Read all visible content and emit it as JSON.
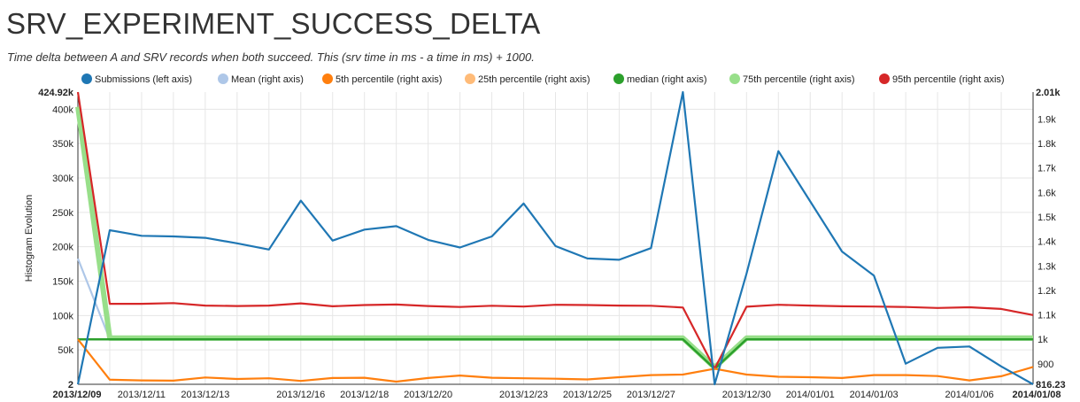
{
  "header": {
    "title": "SRV_EXPERIMENT_SUCCESS_DELTA",
    "subtitle": "Time delta between A and SRV records when both succeed. This (srv time in ms - a time in ms) + 1000."
  },
  "chart_data": {
    "type": "line",
    "title": "SRV_EXPERIMENT_SUCCESS_DELTA",
    "ylabel": "Histogram Evolution",
    "x": [
      "2013/12/09",
      "2013/12/10",
      "2013/12/11",
      "2013/12/12",
      "2013/12/13",
      "2013/12/14",
      "2013/12/15",
      "2013/12/16",
      "2013/12/17",
      "2013/12/18",
      "2013/12/19",
      "2013/12/20",
      "2013/12/21",
      "2013/12/22",
      "2013/12/23",
      "2013/12/24",
      "2013/12/25",
      "2013/12/26",
      "2013/12/27",
      "2013/12/28",
      "2013/12/29",
      "2013/12/30",
      "2013/12/31",
      "2014/01/01",
      "2014/01/02",
      "2014/01/03",
      "2014/01/04",
      "2014/01/05",
      "2014/01/06",
      "2014/01/07",
      "2014/01/08"
    ],
    "xticks": [
      "2013/12/09",
      "2013/12/11",
      "2013/12/13",
      "2013/12/16",
      "2013/12/18",
      "2013/12/20",
      "2013/12/23",
      "2013/12/25",
      "2013/12/27",
      "2013/12/30",
      "2014/01/01",
      "2014/01/03",
      "2014/01/06",
      "2014/01/08"
    ],
    "x_first_label": "2013/12/09",
    "x_last_label": "2014/01/08",
    "left_axis": {
      "min": 2,
      "max": 424920,
      "min_label": "2",
      "max_label": "424.92k",
      "ticks": [
        50000,
        100000,
        150000,
        200000,
        250000,
        300000,
        350000,
        400000
      ],
      "tick_labels": [
        "50k",
        "100k",
        "150k",
        "200k",
        "250k",
        "300k",
        "350k",
        "400k"
      ]
    },
    "right_axis": {
      "min": 816.23,
      "max": 2010,
      "min_label": "816.23",
      "max_label": "2.01k",
      "ticks": [
        900,
        1000,
        1100,
        1200,
        1300,
        1400,
        1500,
        1600,
        1700,
        1800,
        1900
      ],
      "tick_labels": [
        "900",
        "1k",
        "1.1k",
        "1.2k",
        "1.3k",
        "1.4k",
        "1.5k",
        "1.6k",
        "1.7k",
        "1.8k",
        "1.9k"
      ]
    },
    "grid": true,
    "legend_position": "top",
    "series": [
      {
        "name": "Submissions (left axis)",
        "axis": "left",
        "color": "#1f77b4",
        "values": [
          2,
          224000,
          216000,
          215000,
          213000,
          205000,
          196000,
          267000,
          209000,
          225000,
          230000,
          210000,
          199000,
          215000,
          263000,
          201000,
          183000,
          181000,
          198000,
          424920,
          2,
          161000,
          339000,
          266000,
          193000,
          158000,
          30000,
          53000,
          55000,
          26000,
          2
        ]
      },
      {
        "name": "Mean (right axis)",
        "axis": "right",
        "color": "#aec7e8",
        "values": [
          1330,
          1000,
          1000,
          1000,
          1000,
          1000,
          1000,
          1000,
          1000,
          1000,
          1000,
          1000,
          1000,
          1000,
          1000,
          1000,
          1000,
          1000,
          1000,
          1000,
          880,
          1000,
          1000,
          1000,
          1000,
          1000,
          1000,
          1000,
          1000,
          1000,
          1000
        ]
      },
      {
        "name": "5th percentile (right axis)",
        "axis": "right",
        "color": "#ff7f0e",
        "values": [
          1000,
          835,
          832,
          831,
          844,
          838,
          841,
          830,
          842,
          843,
          827,
          842,
          852,
          843,
          841,
          839,
          836,
          845,
          854,
          856,
          880,
          856,
          847,
          845,
          842,
          854,
          854,
          850,
          832,
          849,
          887
        ]
      },
      {
        "name": "25th percentile (right axis)",
        "axis": "right",
        "color": "#ffbb78",
        "values": [
          1000,
          1000,
          1000,
          1000,
          1000,
          1000,
          1000,
          1000,
          1000,
          1000,
          1000,
          1000,
          1000,
          1000,
          1000,
          1000,
          1000,
          1000,
          1000,
          1000,
          880,
          1000,
          1000,
          1000,
          1000,
          1000,
          1000,
          1000,
          1000,
          1000,
          1000
        ]
      },
      {
        "name": "median (right axis)",
        "axis": "right",
        "color": "#2ca02c",
        "values": [
          1000,
          1000,
          1000,
          1000,
          1000,
          1000,
          1000,
          1000,
          1000,
          1000,
          1000,
          1000,
          1000,
          1000,
          1000,
          1000,
          1000,
          1000,
          1000,
          1000,
          880,
          1000,
          1000,
          1000,
          1000,
          1000,
          1000,
          1000,
          1000,
          1000,
          1000
        ]
      },
      {
        "name": "75th percentile (right axis)",
        "axis": "right",
        "color": "#98df8a",
        "values": [
          1950,
          1005,
          1005,
          1005,
          1005,
          1005,
          1005,
          1005,
          1005,
          1005,
          1005,
          1005,
          1005,
          1005,
          1005,
          1005,
          1005,
          1005,
          1005,
          1005,
          885,
          1005,
          1005,
          1005,
          1005,
          1005,
          1005,
          1005,
          1005,
          1005,
          1005
        ]
      },
      {
        "name": "95th percentile (right axis)",
        "axis": "right",
        "color": "#d62728",
        "values": [
          2010,
          1145,
          1145,
          1148,
          1138,
          1136,
          1138,
          1147,
          1135,
          1140,
          1142,
          1136,
          1132,
          1137,
          1134,
          1141,
          1140,
          1138,
          1137,
          1130,
          880,
          1133,
          1141,
          1138,
          1135,
          1134,
          1132,
          1128,
          1131,
          1124,
          1099
        ]
      }
    ]
  }
}
